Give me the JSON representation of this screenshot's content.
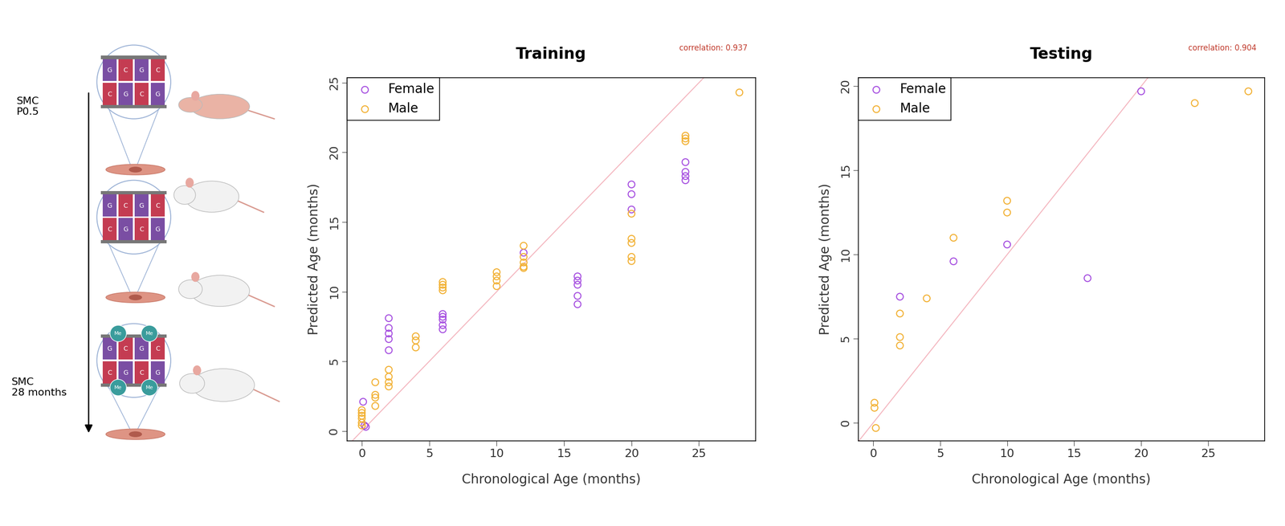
{
  "chart_data": [
    {
      "type": "scatter",
      "title": "Training",
      "x_label": "Chronological Age (months)",
      "y_label": "Predicted Age (months)",
      "annotation": "correlation: 0.937",
      "legend": "upper left",
      "xlim": [
        -1.1,
        29.2
      ],
      "ylim": [
        -0.7,
        25.35
      ],
      "xticks": [
        0,
        5,
        10,
        15,
        20,
        25
      ],
      "yticks": [
        0,
        5,
        10,
        15,
        20,
        25
      ],
      "series": [
        {
          "name": "Female",
          "color": "#a64fe0",
          "marker": "circle",
          "x": [
            0.1,
            0.2,
            0.3,
            2,
            2,
            2,
            2,
            2,
            6,
            6,
            6,
            6,
            6,
            12,
            16,
            16,
            16,
            16,
            16,
            20,
            20,
            20,
            24,
            24,
            24,
            24
          ],
          "values": [
            2.1,
            0.4,
            0.3,
            8.1,
            7.4,
            7.0,
            6.6,
            5.8,
            8.4,
            8.2,
            8.0,
            7.6,
            7.3,
            12.8,
            11.1,
            10.8,
            10.5,
            9.7,
            9.1,
            17.7,
            17.0,
            15.9,
            19.3,
            18.6,
            18.3,
            18.0
          ]
        },
        {
          "name": "Male",
          "color": "#f2b134",
          "marker": "circle",
          "x": [
            0,
            0,
            0,
            0,
            0,
            0,
            1,
            1,
            1,
            1,
            2,
            2,
            2,
            2,
            4,
            4,
            4,
            6,
            6,
            6,
            6,
            10,
            10,
            10,
            10,
            12,
            12,
            12,
            12,
            12,
            20,
            20,
            20,
            20,
            20,
            24,
            24,
            24,
            28
          ],
          "values": [
            1.5,
            1.3,
            1.1,
            0.9,
            0.6,
            0.4,
            3.5,
            2.6,
            2.4,
            1.8,
            4.4,
            3.9,
            3.5,
            3.2,
            6.8,
            6.5,
            6.0,
            10.7,
            10.5,
            10.3,
            10.1,
            11.4,
            11.1,
            10.8,
            10.4,
            13.3,
            12.5,
            12.1,
            11.8,
            11.7,
            15.6,
            13.8,
            13.5,
            12.5,
            12.2,
            21.2,
            21.0,
            20.8,
            24.3
          ]
        }
      ]
    },
    {
      "type": "scatter",
      "title": "Testing",
      "x_label": "Chronological Age (months)",
      "y_label": "Predicted Age (months)",
      "annotation": "correlation: 0.904",
      "legend": "upper left",
      "xlim": [
        -1.1,
        29.2
      ],
      "ylim": [
        -1.06,
        20.5
      ],
      "xticks": [
        0,
        5,
        10,
        15,
        20,
        25
      ],
      "yticks": [
        0,
        5,
        10,
        15,
        20
      ],
      "series": [
        {
          "name": "Female",
          "color": "#a64fe0",
          "marker": "circle",
          "x": [
            2,
            6,
            10,
            16,
            20
          ],
          "values": [
            7.5,
            9.6,
            10.6,
            8.6,
            19.7
          ]
        },
        {
          "name": "Male",
          "color": "#f2b134",
          "marker": "circle",
          "x": [
            0.1,
            0.1,
            0.2,
            2,
            2,
            2,
            4,
            6,
            10,
            10,
            24,
            28
          ],
          "values": [
            1.2,
            0.9,
            -0.3,
            6.5,
            5.1,
            4.6,
            7.4,
            11.0,
            13.2,
            12.5,
            19.0,
            19.7
          ]
        }
      ]
    }
  ],
  "diagram": {
    "start_label": "SMC\nP0.5",
    "end_label": "SMC\n28 months",
    "dna_top": [
      "G",
      "C",
      "G",
      "C"
    ],
    "dna_bottom": [
      "C",
      "G",
      "C",
      "G"
    ],
    "methyl_label": "Me"
  }
}
